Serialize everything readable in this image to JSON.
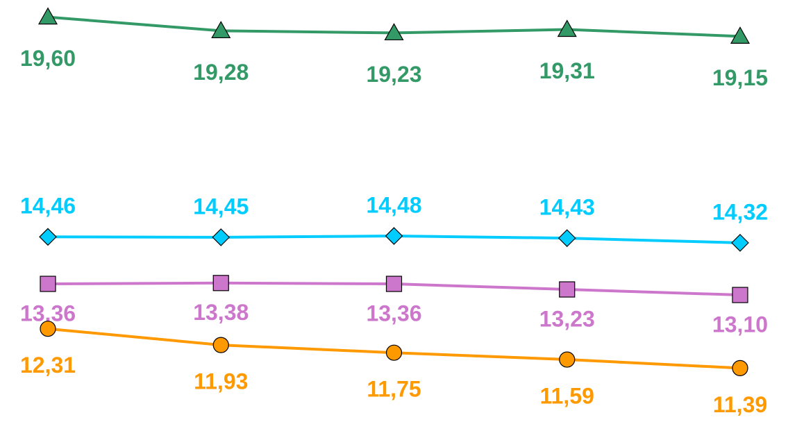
{
  "chart_data": {
    "type": "line",
    "categories": [
      null,
      null,
      null,
      null,
      null
    ],
    "ylim": [
      10,
      20
    ],
    "series": [
      {
        "name": null,
        "color": "#339966",
        "marker": "triangle",
        "values": [
          19.6,
          19.28,
          19.23,
          19.31,
          19.15
        ],
        "value_labels": [
          "19,60",
          "19,28",
          "19,23",
          "19,31",
          "19,15"
        ]
      },
      {
        "name": null,
        "color": "#00ccff",
        "marker": "diamond",
        "values": [
          14.46,
          14.45,
          14.48,
          14.43,
          14.32
        ],
        "value_labels": [
          "14,46",
          "14,45",
          "14,48",
          "14,43",
          "14,32"
        ]
      },
      {
        "name": null,
        "color": "#cc77cc",
        "marker": "square",
        "values": [
          13.36,
          13.38,
          13.36,
          13.23,
          13.1
        ],
        "value_labels": [
          "13,36",
          "13,38",
          "13,36",
          "13,23",
          "13,10"
        ]
      },
      {
        "name": null,
        "color": "#ff9900",
        "marker": "circle",
        "values": [
          12.31,
          11.93,
          11.75,
          11.59,
          11.39
        ],
        "value_labels": [
          "12,31",
          "11,93",
          "11,75",
          "11,59",
          "11,39"
        ]
      }
    ]
  }
}
